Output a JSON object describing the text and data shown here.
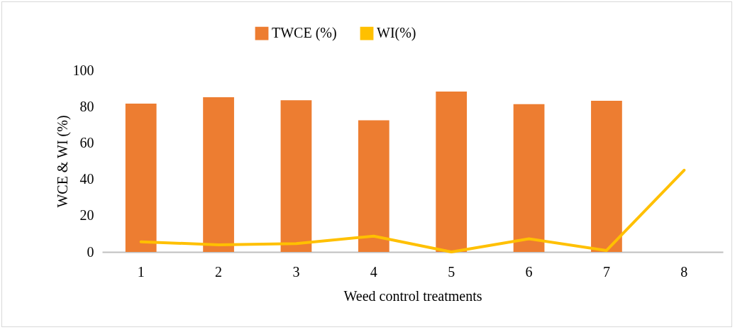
{
  "chart_data": {
    "type": "bar",
    "xlabel": "Weed control treatments",
    "ylabel": "WCE & WI (%)",
    "categories": [
      "1",
      "2",
      "3",
      "4",
      "5",
      "6",
      "7",
      "8"
    ],
    "series": [
      {
        "name": "TWCE (%)",
        "color": "#ed7d31",
        "values": [
          81.6,
          85.2,
          83.5,
          72.5,
          88.3,
          81.3,
          83.2,
          null
        ]
      },
      {
        "name": "WI(%)",
        "type": "line",
        "color": "#ffc000",
        "values": [
          5.6,
          3.9,
          4.6,
          8.7,
          0,
          7.2,
          0.8,
          45
        ]
      }
    ],
    "ylim": [
      0,
      100
    ],
    "yticks": [
      0,
      20,
      40,
      60,
      80,
      100
    ],
    "grid": false,
    "legend": "top",
    "marker": "none",
    "line_style": "solid"
  }
}
